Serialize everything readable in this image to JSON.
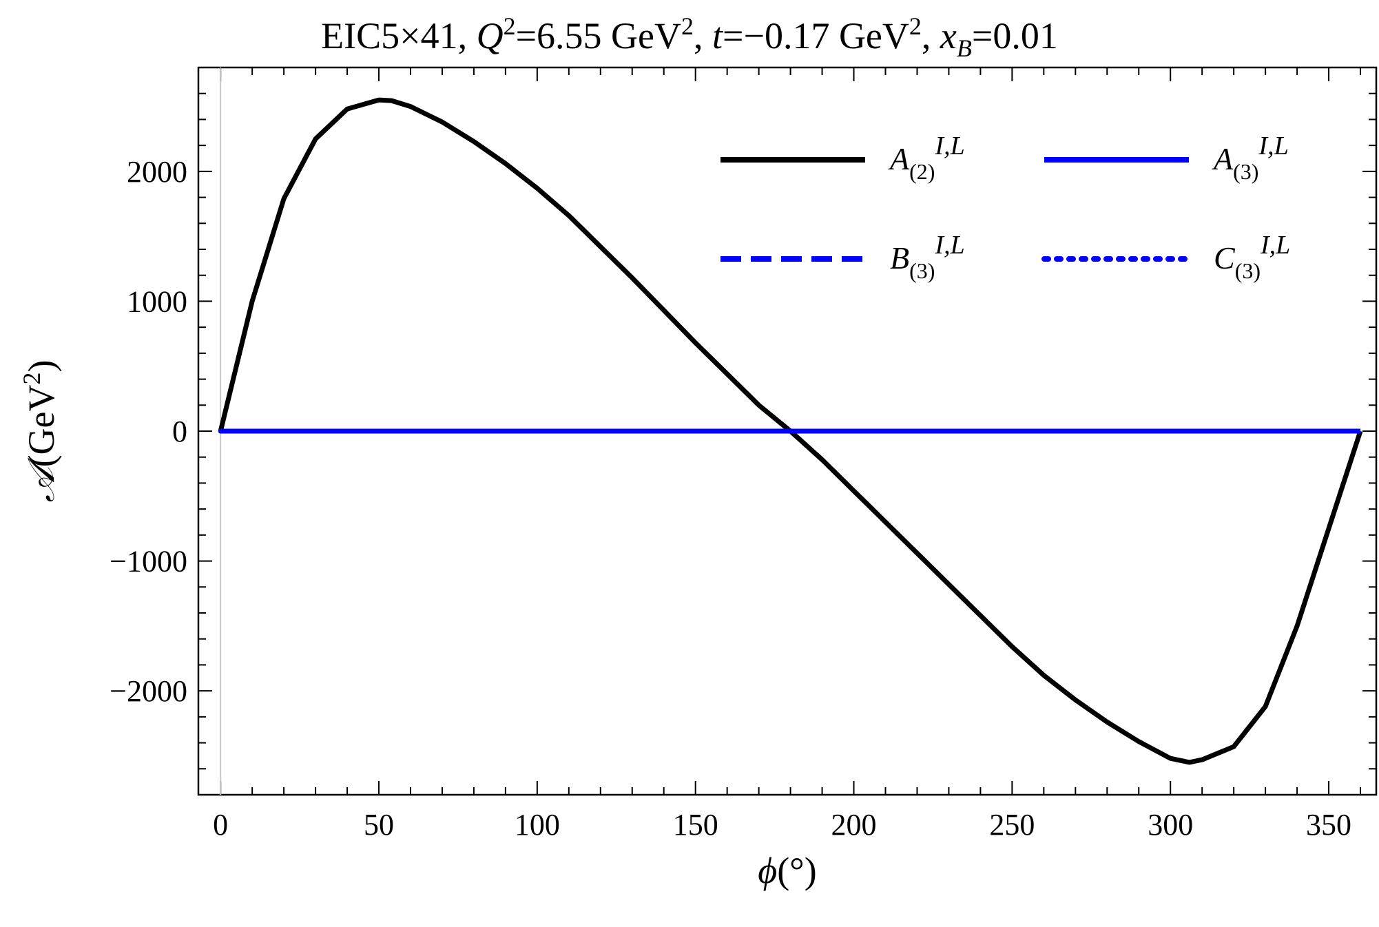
{
  "chart_data": {
    "type": "line",
    "title_parts": {
      "prefix": "EIC5×41, ",
      "q": "Q",
      "q_sup": "2",
      "q_val": "=6.55 GeV",
      "q_unit_sup": "2",
      "t_sep": ", ",
      "t": "t",
      "t_val": "=−0.17 GeV",
      "t_unit_sup": "2",
      "x_sep": ", ",
      "x": "x",
      "x_sub": "B",
      "x_val": "=0.01"
    },
    "xlabel_parts": {
      "symbol": "ϕ",
      "unit": "(°)"
    },
    "ylabel_parts": {
      "symbol": "𝒜",
      "unit": "(GeV",
      "unit_sup": "2",
      "close": ")"
    },
    "xlim": [
      -7,
      365
    ],
    "ylim": [
      -2800,
      2800
    ],
    "xticks": [
      "0",
      "50",
      "100",
      "150",
      "200",
      "250",
      "300",
      "350"
    ],
    "xtick_values": [
      0,
      50,
      100,
      150,
      200,
      250,
      300,
      350
    ],
    "yticks": [
      "2000",
      "1000",
      "0",
      "−1000",
      "−2000"
    ],
    "ytick_values": [
      2000,
      1000,
      0,
      -1000,
      -2000
    ],
    "legend_position": "top-right",
    "series": [
      {
        "name": "A(2)I,L",
        "label": {
          "base": "A",
          "sub": "(2)",
          "sup": "I,L"
        },
        "color": "#000000",
        "style": "solid",
        "x": [
          0,
          10,
          20,
          30,
          40,
          50,
          54,
          60,
          70,
          80,
          90,
          100,
          110,
          120,
          130,
          140,
          150,
          160,
          170,
          180,
          190,
          200,
          210,
          220,
          230,
          240,
          250,
          260,
          270,
          280,
          290,
          300,
          306,
          310,
          320,
          330,
          340,
          350,
          360
        ],
        "values": [
          0,
          1000,
          1790,
          2250,
          2480,
          2550,
          2545,
          2500,
          2380,
          2230,
          2060,
          1870,
          1660,
          1420,
          1180,
          930,
          680,
          440,
          200,
          0,
          -220,
          -460,
          -700,
          -940,
          -1180,
          -1420,
          -1660,
          -1880,
          -2070,
          -2240,
          -2390,
          -2520,
          -2550,
          -2530,
          -2430,
          -2120,
          -1500,
          -750,
          0
        ]
      },
      {
        "name": "A(3)I,L",
        "label": {
          "base": "A",
          "sub": "(3)",
          "sup": "I,L"
        },
        "color": "#0000ff",
        "style": "solid",
        "x": [
          0,
          360
        ],
        "values": [
          0,
          0
        ]
      },
      {
        "name": "B(3)I,L",
        "label": {
          "base": "B",
          "sub": "(3)",
          "sup": "I,L"
        },
        "color": "#0000ff",
        "style": "dashed",
        "x": [
          0,
          360
        ],
        "values": [
          0,
          0
        ]
      },
      {
        "name": "C(3)I,L",
        "label": {
          "base": "C",
          "sub": "(3)",
          "sup": "I,L"
        },
        "color": "#0000ff",
        "style": "dotted",
        "x": [
          0,
          360
        ],
        "values": [
          0,
          0
        ]
      }
    ]
  }
}
